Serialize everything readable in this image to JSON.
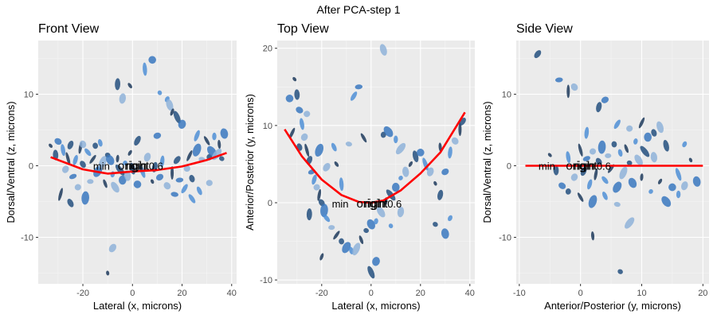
{
  "figure": {
    "title": "After PCA-step 1"
  },
  "chart_data": [
    {
      "type": "scatter",
      "title": "Front View",
      "xlabel": "Lateral (x, microns)",
      "ylabel": "Dorsal/Ventral (z, microns)",
      "xlim": [
        -38,
        42
      ],
      "ylim": [
        -16.5,
        17.5
      ],
      "xticks": [
        -20,
        0,
        20,
        40
      ],
      "yticks": [
        -10,
        0,
        10
      ],
      "xtick_labels": [
        "-20",
        "0",
        "20",
        "40"
      ],
      "ytick_labels": [
        "-10",
        "0",
        "10"
      ],
      "grid": true,
      "annotations": [
        {
          "text": "min",
          "x": -12.5,
          "y": 0
        },
        {
          "text": "origin",
          "x": 0,
          "y": 0
        },
        {
          "text": "right",
          "x": 2,
          "y": 0
        },
        {
          "text": "0.6",
          "x": 9.5,
          "y": 0
        }
      ],
      "curve": {
        "color": "#ff0000",
        "x": [
          -33,
          -20,
          -10,
          0,
          10,
          20,
          30,
          38
        ],
        "y": [
          1.2,
          -0.5,
          -1.1,
          -0.8,
          -0.6,
          -0.1,
          0.8,
          1.8
        ]
      },
      "points": [
        {
          "x": -33,
          "y": 2.8
        },
        {
          "x": -31,
          "y": 1.5
        },
        {
          "x": -30,
          "y": 3.4
        },
        {
          "x": -28,
          "y": 2.2
        },
        {
          "x": -27,
          "y": -0.5
        },
        {
          "x": -26,
          "y": 1.0
        },
        {
          "x": -25,
          "y": 2.9
        },
        {
          "x": -24,
          "y": -1.5
        },
        {
          "x": -23,
          "y": 0.8
        },
        {
          "x": -22,
          "y": -3.0
        },
        {
          "x": -21,
          "y": 2.5
        },
        {
          "x": -20,
          "y": 0.2
        },
        {
          "x": -19,
          "y": -4.5
        },
        {
          "x": -18,
          "y": 1.9
        },
        {
          "x": -17,
          "y": -2.2
        },
        {
          "x": -16,
          "y": 0.9
        },
        {
          "x": -15,
          "y": 2.8
        },
        {
          "x": -14,
          "y": -0.8
        },
        {
          "x": -13,
          "y": 3.2
        },
        {
          "x": -12,
          "y": 0.5
        },
        {
          "x": -11,
          "y": -2.5
        },
        {
          "x": -10,
          "y": 1.5
        },
        {
          "x": -9,
          "y": 0.8
        },
        {
          "x": -8,
          "y": -1.2
        },
        {
          "x": -7,
          "y": -3.0
        },
        {
          "x": -6,
          "y": 1.0
        },
        {
          "x": -5,
          "y": -0.6
        },
        {
          "x": -4,
          "y": -2.0
        },
        {
          "x": -3,
          "y": 0.4
        },
        {
          "x": -2,
          "y": -1.4
        },
        {
          "x": -1,
          "y": 1.8
        },
        {
          "x": 0,
          "y": -0.4
        },
        {
          "x": 2,
          "y": -2.6
        },
        {
          "x": 4,
          "y": -0.8
        },
        {
          "x": 6,
          "y": 1.2
        },
        {
          "x": 8,
          "y": -2.2
        },
        {
          "x": 9,
          "y": -0.2
        },
        {
          "x": 11,
          "y": -1.6
        },
        {
          "x": 12,
          "y": 0.6
        },
        {
          "x": 14,
          "y": -2.8
        },
        {
          "x": 16,
          "y": -1.0
        },
        {
          "x": 18,
          "y": 0.8
        },
        {
          "x": 19,
          "y": -2.0
        },
        {
          "x": 21,
          "y": -3.2
        },
        {
          "x": 22,
          "y": -0.4
        },
        {
          "x": 23,
          "y": 1.4
        },
        {
          "x": 24,
          "y": -1.8
        },
        {
          "x": 26,
          "y": 2.2
        },
        {
          "x": 27,
          "y": -3.5
        },
        {
          "x": 28,
          "y": 0.9
        },
        {
          "x": 30,
          "y": 3.5
        },
        {
          "x": 31,
          "y": 1.2
        },
        {
          "x": 32,
          "y": 2.0
        },
        {
          "x": 33,
          "y": 4.1
        },
        {
          "x": 34,
          "y": 1.6
        },
        {
          "x": 35,
          "y": 3.0
        },
        {
          "x": 36,
          "y": 1.0
        },
        {
          "x": 37,
          "y": 4.5
        },
        {
          "x": 14,
          "y": 9.3
        },
        {
          "x": 15,
          "y": 8.5
        },
        {
          "x": 16,
          "y": 7.5
        },
        {
          "x": 18,
          "y": 6.8
        },
        {
          "x": 20,
          "y": 5.8
        },
        {
          "x": 11,
          "y": 10.2
        },
        {
          "x": -4,
          "y": 9.4
        },
        {
          "x": -1,
          "y": 11.2
        },
        {
          "x": -6,
          "y": 11.4
        },
        {
          "x": 8,
          "y": 14.8
        },
        {
          "x": 5,
          "y": 13.5
        },
        {
          "x": -8,
          "y": -11.5
        },
        {
          "x": -10,
          "y": -15.0
        },
        {
          "x": 2,
          "y": 3.5
        },
        {
          "x": 10,
          "y": 4.2
        },
        {
          "x": 26,
          "y": 4.2
        },
        {
          "x": -20,
          "y": 3.0
        },
        {
          "x": -29,
          "y": -4.0
        },
        {
          "x": -25,
          "y": -5.2
        },
        {
          "x": 17,
          "y": -4.0
        },
        {
          "x": 24,
          "y": -4.6
        },
        {
          "x": 31,
          "y": -2.4
        }
      ]
    },
    {
      "type": "scatter",
      "title": "Top View",
      "xlabel": "Lateral (x, microns)",
      "ylabel": "Anterior/Posterior (y, microns)",
      "xlim": [
        -38,
        42
      ],
      "ylim": [
        -10.5,
        21
      ],
      "xticks": [
        -20,
        0,
        20,
        40
      ],
      "yticks": [
        -10,
        0,
        10,
        20
      ],
      "xtick_labels": [
        "-20",
        "0",
        "20",
        "40"
      ],
      "ytick_labels": [
        "-10",
        "0",
        "10",
        "20"
      ],
      "grid": true,
      "annotations": [
        {
          "text": "min",
          "x": -12.5,
          "y": -0.1
        },
        {
          "text": "origin",
          "x": 0,
          "y": -0.1
        },
        {
          "text": "right",
          "x": 2,
          "y": -0.1
        },
        {
          "text": "0.6",
          "x": 9.5,
          "y": -0.1
        }
      ],
      "curve": {
        "color": "#ff0000",
        "x": [
          -35,
          -28,
          -20,
          -12,
          -5,
          0,
          5,
          12,
          20,
          28,
          38
        ],
        "y": [
          9.5,
          6.0,
          3.0,
          1.0,
          0.1,
          0,
          0.3,
          1.6,
          3.8,
          6.5,
          11.7
        ]
      },
      "points": [
        {
          "x": -31,
          "y": 16.0
        },
        {
          "x": -30,
          "y": 14.0
        },
        {
          "x": -29,
          "y": 12.0
        },
        {
          "x": -28,
          "y": 10.2
        },
        {
          "x": -27,
          "y": 8.5
        },
        {
          "x": -26,
          "y": 6.8
        },
        {
          "x": -25,
          "y": 5.5
        },
        {
          "x": -24,
          "y": 4.0
        },
        {
          "x": -23,
          "y": 3.0
        },
        {
          "x": -22,
          "y": 2.0
        },
        {
          "x": -21,
          "y": 1.0
        },
        {
          "x": -20,
          "y": 0.0
        },
        {
          "x": -19,
          "y": -1.0
        },
        {
          "x": -18,
          "y": -2.0
        },
        {
          "x": -16,
          "y": -3.2
        },
        {
          "x": -14,
          "y": -4.2
        },
        {
          "x": -12,
          "y": -5.0
        },
        {
          "x": -10,
          "y": -5.8
        },
        {
          "x": -8,
          "y": -6.2
        },
        {
          "x": -6,
          "y": -6.0
        },
        {
          "x": -4,
          "y": -4.8
        },
        {
          "x": -2,
          "y": -3.6
        },
        {
          "x": 0,
          "y": -2.8
        },
        {
          "x": 2,
          "y": -2.4
        },
        {
          "x": 4,
          "y": -1.2
        },
        {
          "x": 6,
          "y": 0.2
        },
        {
          "x": 8,
          "y": 1.0
        },
        {
          "x": 10,
          "y": 2.0
        },
        {
          "x": 12,
          "y": 3.2
        },
        {
          "x": 14,
          "y": 4.0
        },
        {
          "x": 16,
          "y": 5.0
        },
        {
          "x": 18,
          "y": 6.0
        },
        {
          "x": 20,
          "y": 6.5
        },
        {
          "x": 22,
          "y": 5.0
        },
        {
          "x": 24,
          "y": 4.0
        },
        {
          "x": 26,
          "y": 2.5
        },
        {
          "x": 28,
          "y": 1.0
        },
        {
          "x": 30,
          "y": 4.0
        },
        {
          "x": 32,
          "y": 6.5
        },
        {
          "x": 34,
          "y": 8.0
        },
        {
          "x": 36,
          "y": 9.5
        },
        {
          "x": 37,
          "y": 10.5
        },
        {
          "x": -5,
          "y": 15.0
        },
        {
          "x": -7,
          "y": 13.8
        },
        {
          "x": -26,
          "y": 11.5
        },
        {
          "x": -32,
          "y": 9.0
        },
        {
          "x": -29,
          "y": 7.2
        },
        {
          "x": -21,
          "y": 6.8
        },
        {
          "x": -15,
          "y": 7.2
        },
        {
          "x": -9,
          "y": 7.6
        },
        {
          "x": -3,
          "y": 8.4
        },
        {
          "x": 5,
          "y": 8.8
        },
        {
          "x": 7,
          "y": 9.2
        },
        {
          "x": 10,
          "y": 8.2
        },
        {
          "x": 12,
          "y": 7.0
        },
        {
          "x": 28,
          "y": 7.2
        },
        {
          "x": 26,
          "y": -2.8
        },
        {
          "x": 30,
          "y": -4.0
        },
        {
          "x": 32,
          "y": -2.0
        },
        {
          "x": 5,
          "y": 19.8
        },
        {
          "x": -20,
          "y": -7.0
        },
        {
          "x": 0,
          "y": -9.0
        },
        {
          "x": 2,
          "y": -7.6
        },
        {
          "x": 8,
          "y": -3.0
        },
        {
          "x": 12,
          "y": -1.2
        },
        {
          "x": -14,
          "y": 5.0
        },
        {
          "x": -25,
          "y": -1.5
        },
        {
          "x": -33,
          "y": 13.5
        },
        {
          "x": -12,
          "y": 2.4
        },
        {
          "x": -18,
          "y": 4.6
        }
      ]
    },
    {
      "type": "scatter",
      "title": "Side View",
      "xlabel": "Anterior/Posterior (y, microns)",
      "ylabel": "Dorsal/Ventral (z, microns)",
      "xlim": [
        -10.5,
        21
      ],
      "ylim": [
        -16.5,
        17.5
      ],
      "xticks": [
        -10,
        0,
        10,
        20
      ],
      "yticks": [
        -10,
        0,
        10
      ],
      "xtick_labels": [
        "-10",
        "0",
        "10",
        "20"
      ],
      "ytick_labels": [
        "-10",
        "0",
        "10"
      ],
      "grid": true,
      "annotations": [
        {
          "text": "min",
          "x": -5.5,
          "y": 0
        },
        {
          "text": "origin",
          "x": 0,
          "y": 0
        },
        {
          "text": "right",
          "x": 0.8,
          "y": 0
        },
        {
          "text": "0.6",
          "x": 3.8,
          "y": 0
        }
      ],
      "curve": {
        "color": "#ff0000",
        "x": [
          -9,
          20
        ],
        "y": [
          0,
          0
        ]
      },
      "points": [
        {
          "x": -5,
          "y": 1.5
        },
        {
          "x": -4,
          "y": -0.6
        },
        {
          "x": -3,
          "y": -2.8
        },
        {
          "x": -2,
          "y": 1.2
        },
        {
          "x": -1,
          "y": -1.6
        },
        {
          "x": 0,
          "y": 2.2
        },
        {
          "x": 0.5,
          "y": -0.8
        },
        {
          "x": 1,
          "y": 1.0
        },
        {
          "x": 1.5,
          "y": -2.6
        },
        {
          "x": 2,
          "y": 2.0
        },
        {
          "x": 2.5,
          "y": -1.2
        },
        {
          "x": 3,
          "y": 0.6
        },
        {
          "x": 3.5,
          "y": 2.6
        },
        {
          "x": 4,
          "y": -2.0
        },
        {
          "x": 4.5,
          "y": 1.4
        },
        {
          "x": 5,
          "y": -0.4
        },
        {
          "x": 5.5,
          "y": 3.0
        },
        {
          "x": 6,
          "y": -3.0
        },
        {
          "x": 6.5,
          "y": 1.8
        },
        {
          "x": 7,
          "y": -1.0
        },
        {
          "x": 7.5,
          "y": 2.4
        },
        {
          "x": 8,
          "y": 0.4
        },
        {
          "x": 8.5,
          "y": -2.4
        },
        {
          "x": 9,
          "y": 3.4
        },
        {
          "x": 9.5,
          "y": 0.8
        },
        {
          "x": 10,
          "y": -1.6
        },
        {
          "x": 10.5,
          "y": 2.0
        },
        {
          "x": 11,
          "y": 4.0
        },
        {
          "x": 11.5,
          "y": -3.6
        },
        {
          "x": 12,
          "y": 1.2
        },
        {
          "x": 13,
          "y": -2.2
        },
        {
          "x": 14,
          "y": 2.8
        },
        {
          "x": 15,
          "y": -3.0
        },
        {
          "x": 16,
          "y": -1.2
        },
        {
          "x": 17,
          "y": -2.8
        },
        {
          "x": 18,
          "y": 0.8
        },
        {
          "x": 3,
          "y": 8.2
        },
        {
          "x": 4,
          "y": 9.2
        },
        {
          "x": 1,
          "y": 4.6
        },
        {
          "x": -1,
          "y": 11.0
        },
        {
          "x": -2,
          "y": 10.4
        },
        {
          "x": -7,
          "y": 15.6
        },
        {
          "x": -3.5,
          "y": 12.0
        },
        {
          "x": 6,
          "y": 5.8
        },
        {
          "x": 8,
          "y": 5.2
        },
        {
          "x": 10,
          "y": 6.0
        },
        {
          "x": 12,
          "y": 4.6
        },
        {
          "x": 2,
          "y": -5.0
        },
        {
          "x": 4,
          "y": -4.2
        },
        {
          "x": 6,
          "y": -5.4
        },
        {
          "x": 0,
          "y": -4.4
        },
        {
          "x": -2,
          "y": -3.6
        },
        {
          "x": 14,
          "y": -5.0
        },
        {
          "x": 16,
          "y": -4.0
        },
        {
          "x": 8,
          "y": -8.0
        },
        {
          "x": 2,
          "y": -9.8
        },
        {
          "x": 6.5,
          "y": -14.8
        },
        {
          "x": 19,
          "y": -2.2
        },
        {
          "x": 17,
          "y": 3.0
        },
        {
          "x": 13,
          "y": 5.4
        }
      ]
    }
  ]
}
